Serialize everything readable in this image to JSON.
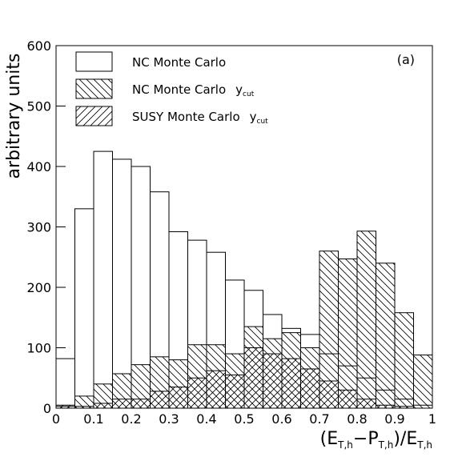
{
  "chart_data": {
    "type": "histogram",
    "ylabel": "arbitrary units",
    "xlabel": [
      "(E",
      "T,h",
      "−P",
      "T,h",
      ")/E",
      "T,h"
    ],
    "annotation": "(a)",
    "bins": [
      0,
      0.05,
      0.1,
      0.15,
      0.2,
      0.25,
      0.3,
      0.35,
      0.4,
      0.45,
      0.5,
      0.55,
      0.6,
      0.65,
      0.7,
      0.75,
      0.8,
      0.85,
      0.9,
      0.95,
      1
    ],
    "xlim": [
      0,
      1
    ],
    "ylim": [
      0,
      600
    ],
    "xticks": [
      0,
      0.1,
      0.2,
      0.3,
      0.4,
      0.5,
      0.6,
      0.7,
      0.8,
      0.9,
      1
    ],
    "yticks": [
      0,
      100,
      200,
      300,
      400,
      500,
      600
    ],
    "series": [
      {
        "name": "NC Monte Carlo",
        "color": "#000000",
        "hatch": "none",
        "values": [
          82,
          330,
          425,
          412,
          400,
          358,
          292,
          278,
          258,
          212,
          195,
          155,
          132,
          122,
          90,
          70,
          50,
          30,
          15,
          5
        ]
      },
      {
        "name": "NC Monte Carlo",
        "suffix": [
          "y",
          "cut"
        ],
        "color": "#000000",
        "hatch": "back",
        "values": [
          3,
          20,
          40,
          57,
          72,
          85,
          80,
          105,
          105,
          90,
          135,
          115,
          125,
          100,
          260,
          247,
          293,
          240,
          158,
          88
        ]
      },
      {
        "name": "SUSY Monte Carlo",
        "suffix": [
          "y",
          "cut"
        ],
        "color": "#000000",
        "hatch": "fwd",
        "values": [
          5,
          3,
          8,
          15,
          15,
          28,
          35,
          50,
          62,
          55,
          100,
          90,
          82,
          65,
          45,
          30,
          15,
          5,
          3,
          0
        ]
      }
    ]
  }
}
